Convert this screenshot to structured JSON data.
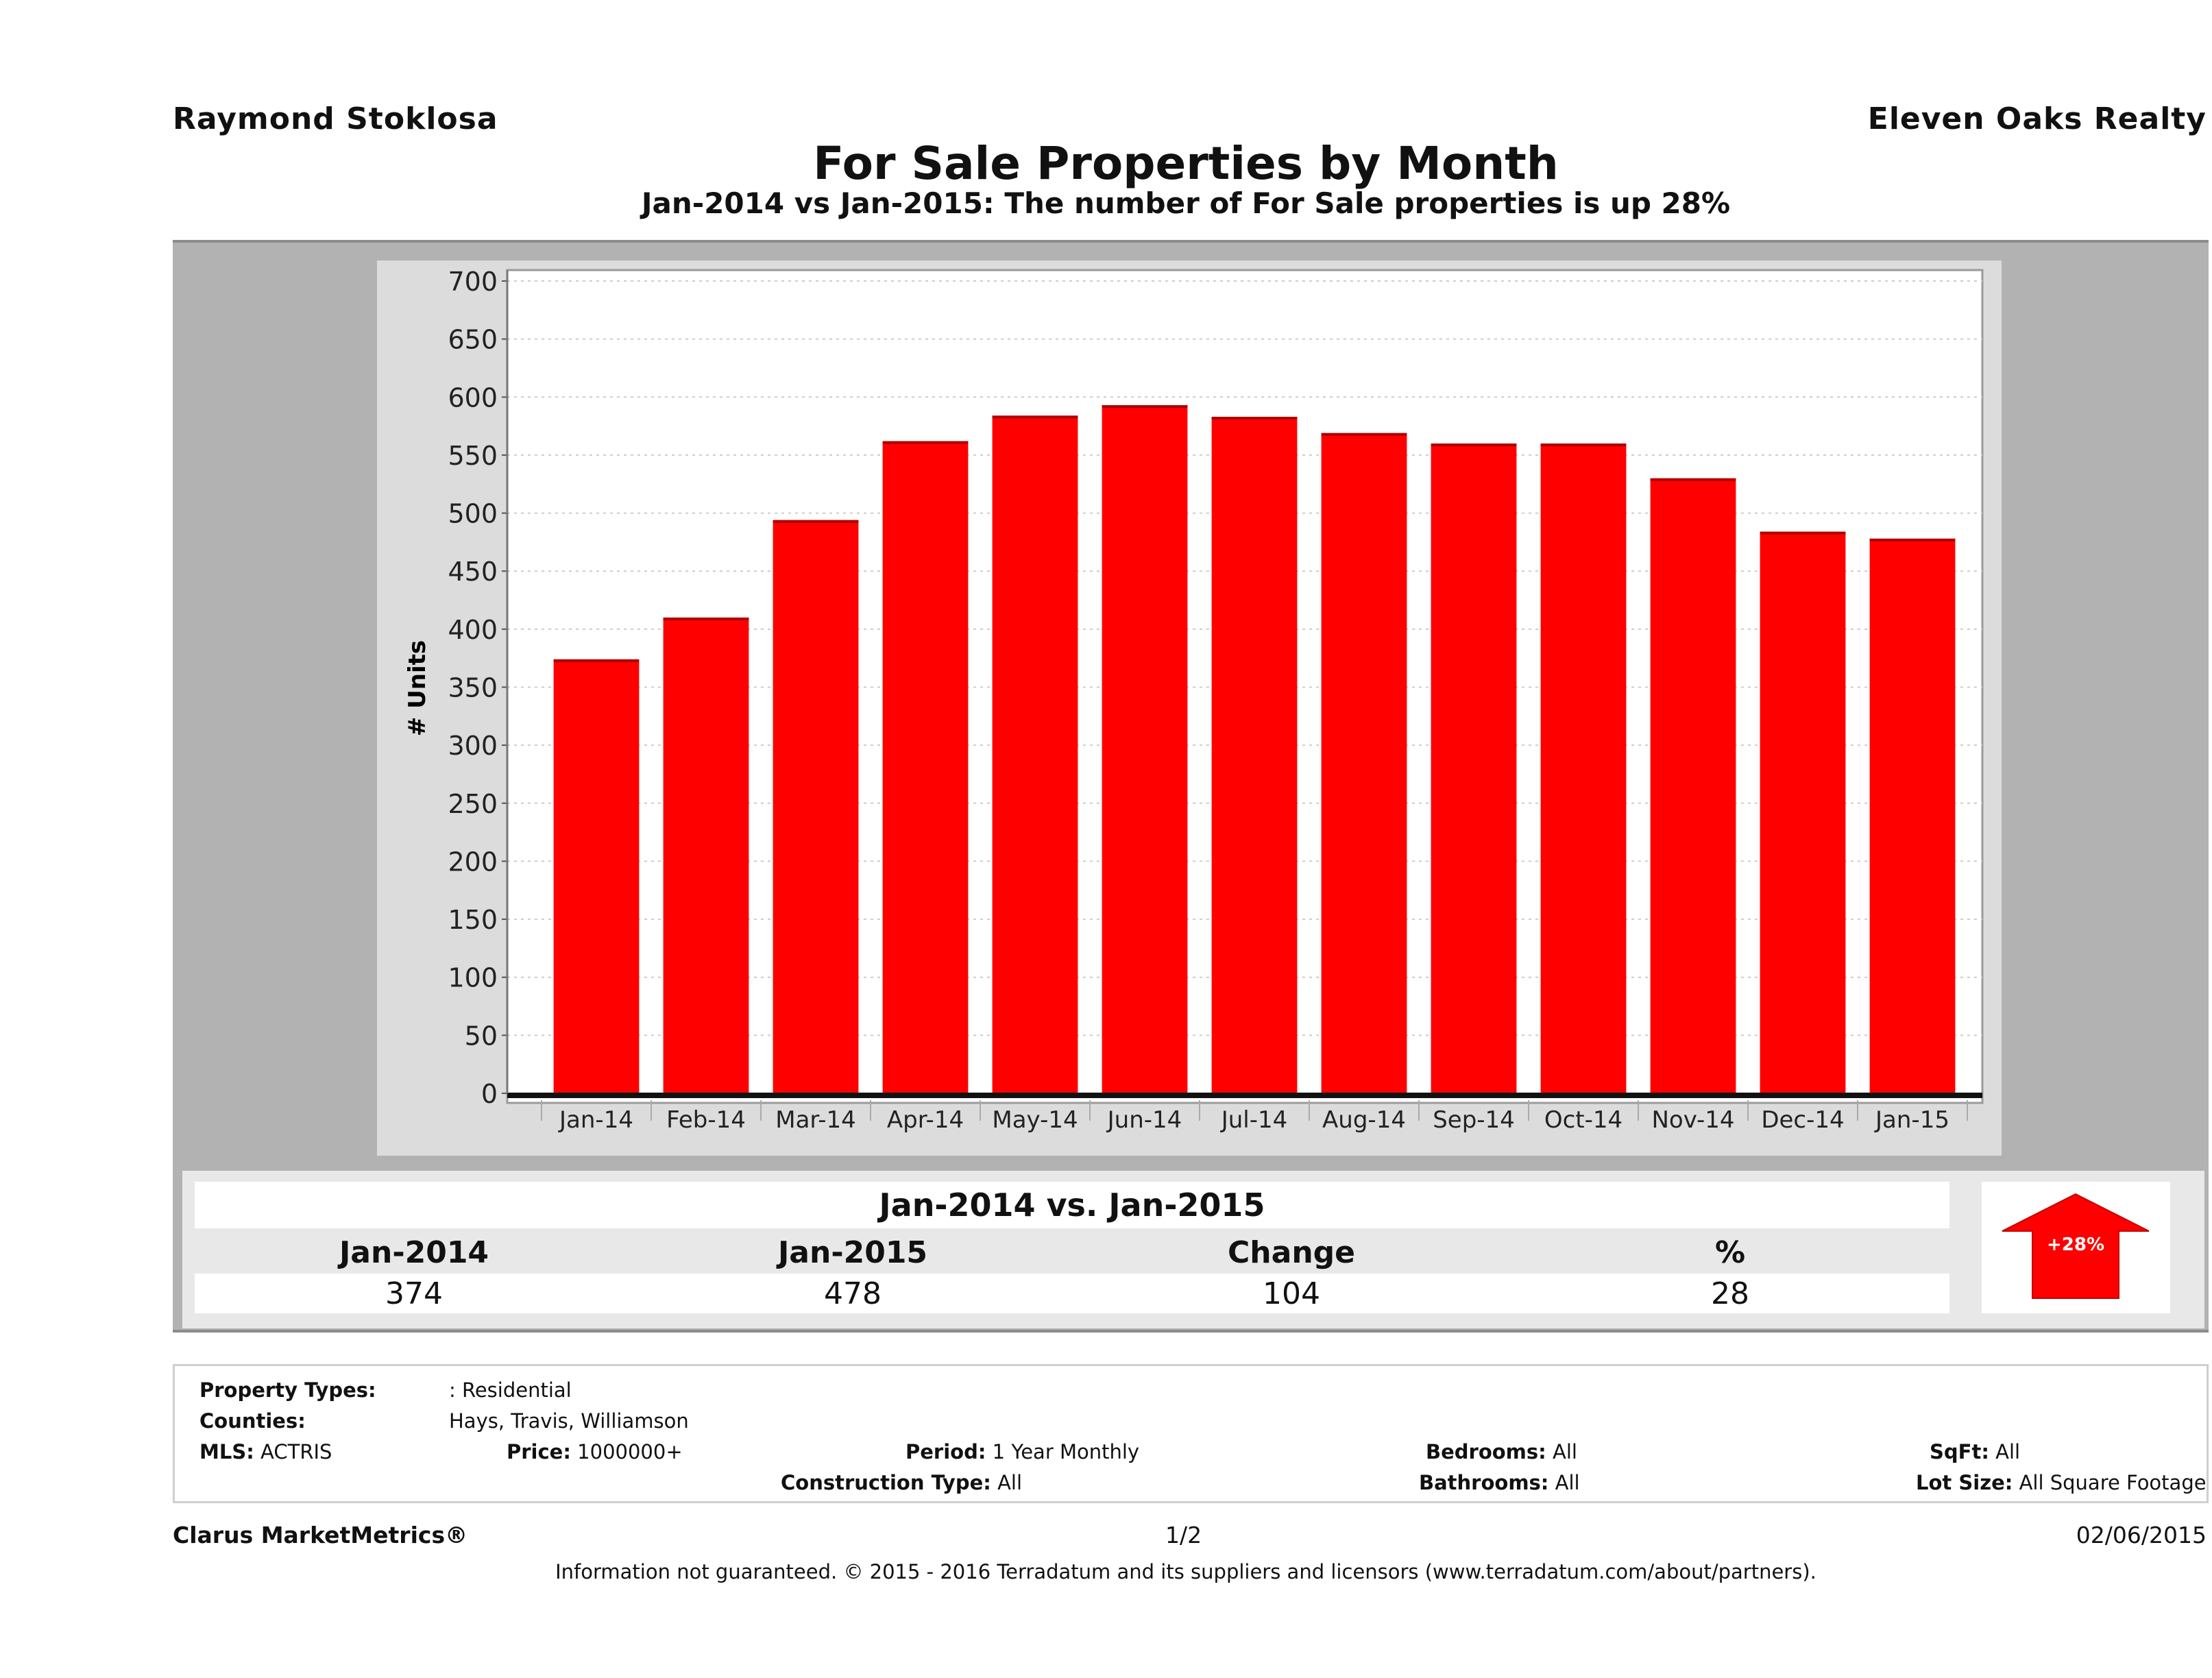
{
  "header": {
    "agent_name": "Raymond Stoklosa",
    "company_name": "Eleven Oaks Realty",
    "title": "For Sale Properties by Month",
    "subtitle": "Jan-2014 vs Jan-2015: The number of For Sale  properties is up 28%"
  },
  "colors": {
    "bar": "#ff0000",
    "panel": "#b2b2b2",
    "chart_frame": "#dcdcdc",
    "arrow": "#ff0000"
  },
  "chart_data": {
    "type": "bar",
    "title": "For Sale Properties by Month",
    "xlabel": "",
    "ylabel": "# Units",
    "categories": [
      "Jan-14",
      "Feb-14",
      "Mar-14",
      "Apr-14",
      "May-14",
      "Jun-14",
      "Jul-14",
      "Aug-14",
      "Sep-14",
      "Oct-14",
      "Nov-14",
      "Dec-14",
      "Jan-15"
    ],
    "values": [
      374,
      410,
      494,
      562,
      584,
      593,
      583,
      569,
      560,
      560,
      530,
      484,
      478
    ],
    "ylim": [
      0,
      700
    ],
    "yticks": [
      0,
      50,
      100,
      150,
      200,
      250,
      300,
      350,
      400,
      450,
      500,
      550,
      600,
      650,
      700
    ],
    "grid": true,
    "legend": "none"
  },
  "summary": {
    "title": "Jan-2014 vs. Jan-2015",
    "headers": [
      "Jan-2014",
      "Jan-2015",
      "Change",
      "%"
    ],
    "values": [
      "374",
      "478",
      "104",
      "28"
    ],
    "arrow_label": "+28%",
    "arrow_icon": "arrow-up-icon"
  },
  "info": {
    "property_types_label": "Property Types:",
    "property_types_value": ": Residential",
    "counties_label": "Counties:",
    "counties_value": "Hays, Travis, Williamson",
    "mls_label": "MLS:",
    "mls_value": "ACTRIS",
    "price_label": "Price:",
    "price_value": "1000000+",
    "period_label": "Period:",
    "period_value": "1 Year Monthly",
    "construction_label": "Construction Type:",
    "construction_value": "All",
    "bedrooms_label": "Bedrooms:",
    "bedrooms_value": "All",
    "bathrooms_label": "Bathrooms:",
    "bathrooms_value": "All",
    "sqft_label": "SqFt:",
    "sqft_value": "All",
    "lotsize_label": "Lot Size:",
    "lotsize_value": "All Square Footage"
  },
  "footer": {
    "brand": "Clarus MarketMetrics®",
    "page": "1/2",
    "date": "02/06/2015",
    "disclaimer": "Information not guaranteed. © 2015 - 2016 Terradatum and its suppliers and licensors (www.terradatum.com/about/partners)."
  }
}
